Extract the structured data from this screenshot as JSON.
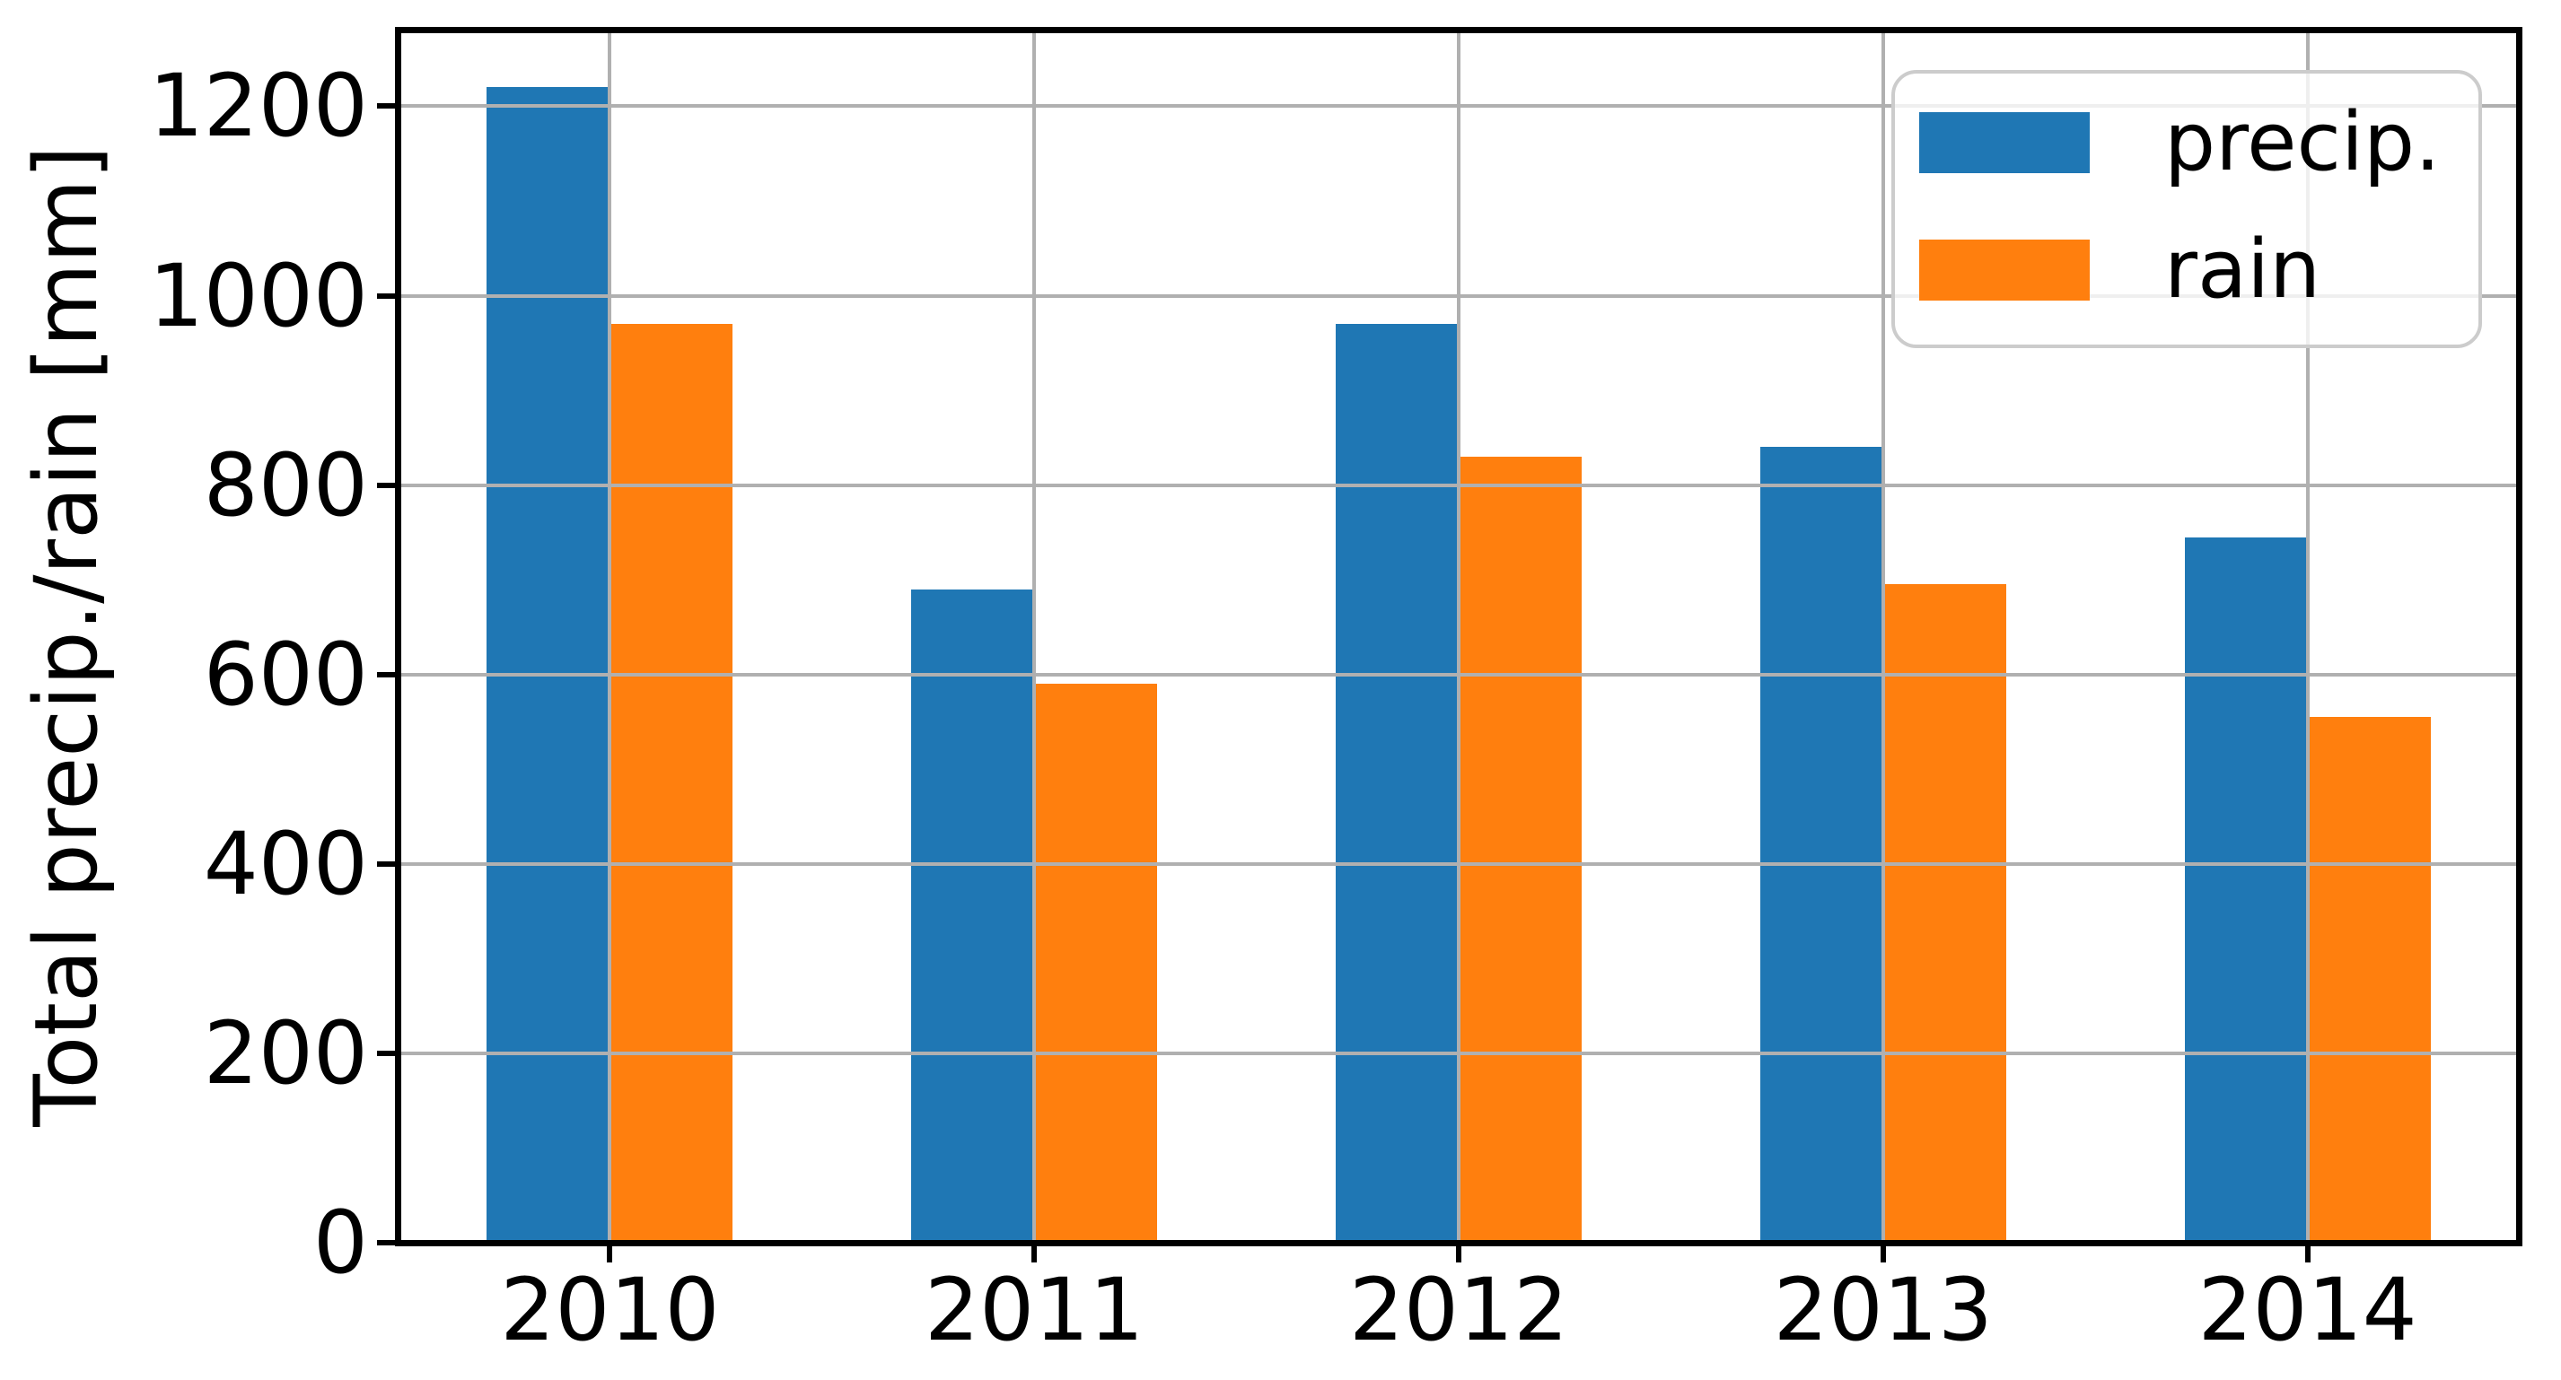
{
  "figure": {
    "background": "#ffffff",
    "axis_color": "#000000",
    "tick_label_color": "#000000"
  },
  "chart_data": {
    "type": "bar",
    "title": "",
    "xlabel": "",
    "ylabel": "Total precip./rain [mm]",
    "categories": [
      "2010",
      "2011",
      "2012",
      "2013",
      "2014"
    ],
    "series": [
      {
        "name": "precip.",
        "color": "#1f77b4",
        "values": [
          1220,
          690,
          970,
          840,
          745
        ]
      },
      {
        "name": "rain",
        "color": "#ff7f0e",
        "values": [
          970,
          590,
          830,
          695,
          555
        ]
      }
    ],
    "ylim": [
      0,
      1281
    ],
    "yticks": [
      0,
      200,
      400,
      600,
      800,
      1000,
      1200
    ],
    "grid": "both",
    "grid_color": "#b0b0b0",
    "grid_above_bars": true,
    "legend": {
      "position": "upper right",
      "labels": [
        "precip.",
        "rain"
      ]
    }
  }
}
